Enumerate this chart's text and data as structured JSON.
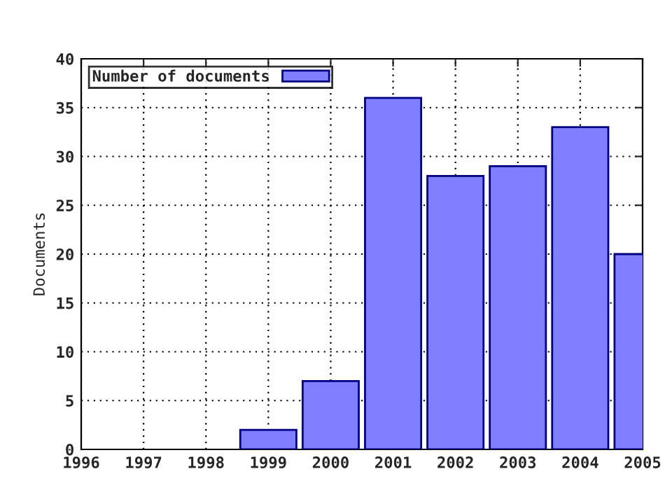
{
  "chart_data": {
    "type": "bar",
    "ylabel": "Documents",
    "x": [
      1999,
      2000,
      2001,
      2002,
      2003,
      2004,
      2005
    ],
    "series": [
      {
        "name": "Number of documents",
        "color": "#8080ff",
        "values": [
          2,
          7,
          36,
          28,
          29,
          33,
          20
        ]
      }
    ],
    "xlim": [
      1996,
      2005
    ],
    "xticks": [
      1996,
      1997,
      1998,
      1999,
      2000,
      2001,
      2002,
      2003,
      2004,
      2005
    ],
    "ylim": [
      0,
      40
    ],
    "yticks": [
      0,
      5,
      10,
      15,
      20,
      25,
      30,
      35,
      40
    ],
    "grid": true,
    "legend": "top left"
  }
}
